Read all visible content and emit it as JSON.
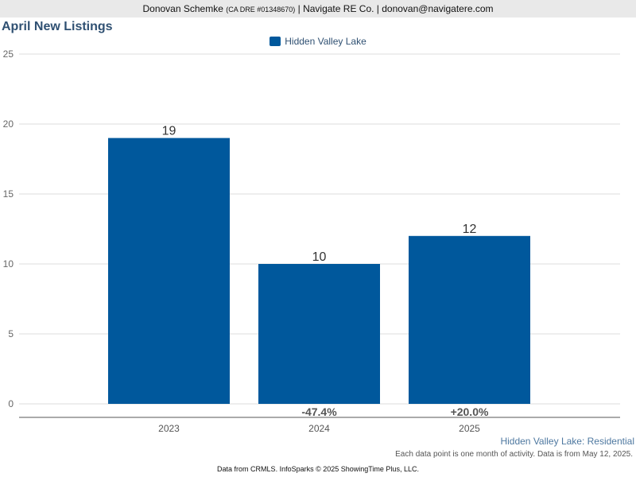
{
  "header": {
    "agent": "Donovan Schemke",
    "license": "(CA DRE #01348670)",
    "rest": "| Navigate RE Co. | donovan@navigatere.com"
  },
  "footer": {
    "series_label": "Hidden Valley Lake: Residential",
    "note": "Each data point is one month of activity. Data is from May 12, 2025.",
    "source": "Data from CRMLS. InfoSparks © 2025 ShowingTime Plus, LLC."
  },
  "chart_data": {
    "type": "bar",
    "title": "April New Listings",
    "categories": [
      "2023",
      "2024",
      "2025"
    ],
    "series": [
      {
        "name": "Hidden Valley Lake",
        "values": [
          19,
          10,
          12
        ],
        "color": "#00589c"
      }
    ],
    "changes": [
      "",
      "-47.4%",
      "+20.0%"
    ],
    "ylim": [
      0,
      25
    ],
    "yticks": [
      0,
      5,
      10,
      15,
      20,
      25
    ],
    "grid": true,
    "legend": "top-center"
  }
}
